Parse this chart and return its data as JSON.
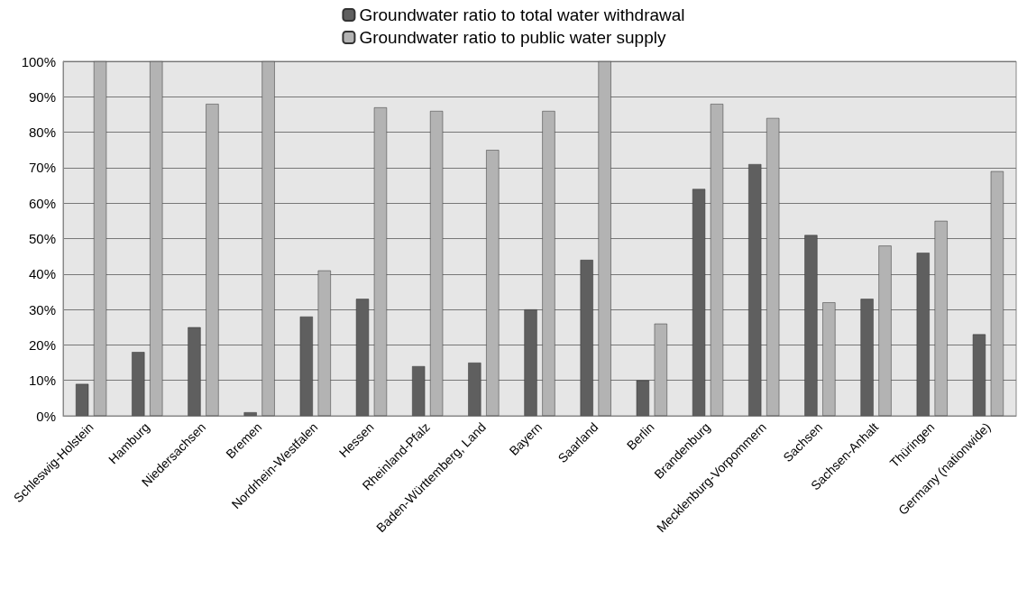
{
  "chart_data": {
    "type": "bar",
    "categories": [
      "Schleswig-Holstein",
      "Hamburg",
      "Niedersachsen",
      "Bremen",
      "Nordrhein-Westfalen",
      "Hessen",
      "Rheinland-Pfalz",
      "Baden-Württemberg, Land",
      "Bayern",
      "Saarland",
      "Berlin",
      "Brandenburg",
      "Mecklenburg-Vorpommern",
      "Sachsen",
      "Sachsen-Anhalt",
      "Thüringen",
      "Germany (nationwide)"
    ],
    "series": [
      {
        "name": "Groundwater ratio to total water withdrawal",
        "color": "#5f5f5f",
        "values": [
          9,
          18,
          25,
          1,
          28,
          33,
          14,
          15,
          30,
          44,
          10,
          64,
          71,
          51,
          33,
          46,
          23
        ]
      },
      {
        "name": "Groundwater ratio to public water supply",
        "color": "#b3b3b3",
        "values": [
          100,
          100,
          88,
          100,
          41,
          87,
          86,
          75,
          86,
          100,
          26,
          88,
          84,
          32,
          48,
          55,
          69
        ]
      }
    ],
    "ylim": [
      0,
      100
    ],
    "yticks": [
      {
        "value": 0,
        "label": "0%"
      },
      {
        "value": 10,
        "label": "10%"
      },
      {
        "value": 20,
        "label": "20%"
      },
      {
        "value": 30,
        "label": "30%"
      },
      {
        "value": 40,
        "label": "40%"
      },
      {
        "value": 50,
        "label": "50%"
      },
      {
        "value": 60,
        "label": "60%"
      },
      {
        "value": 70,
        "label": "70%"
      },
      {
        "value": 80,
        "label": "80%"
      },
      {
        "value": 90,
        "label": "90%"
      },
      {
        "value": 100,
        "label": "100%"
      }
    ],
    "grid": "y",
    "legend": "top"
  }
}
